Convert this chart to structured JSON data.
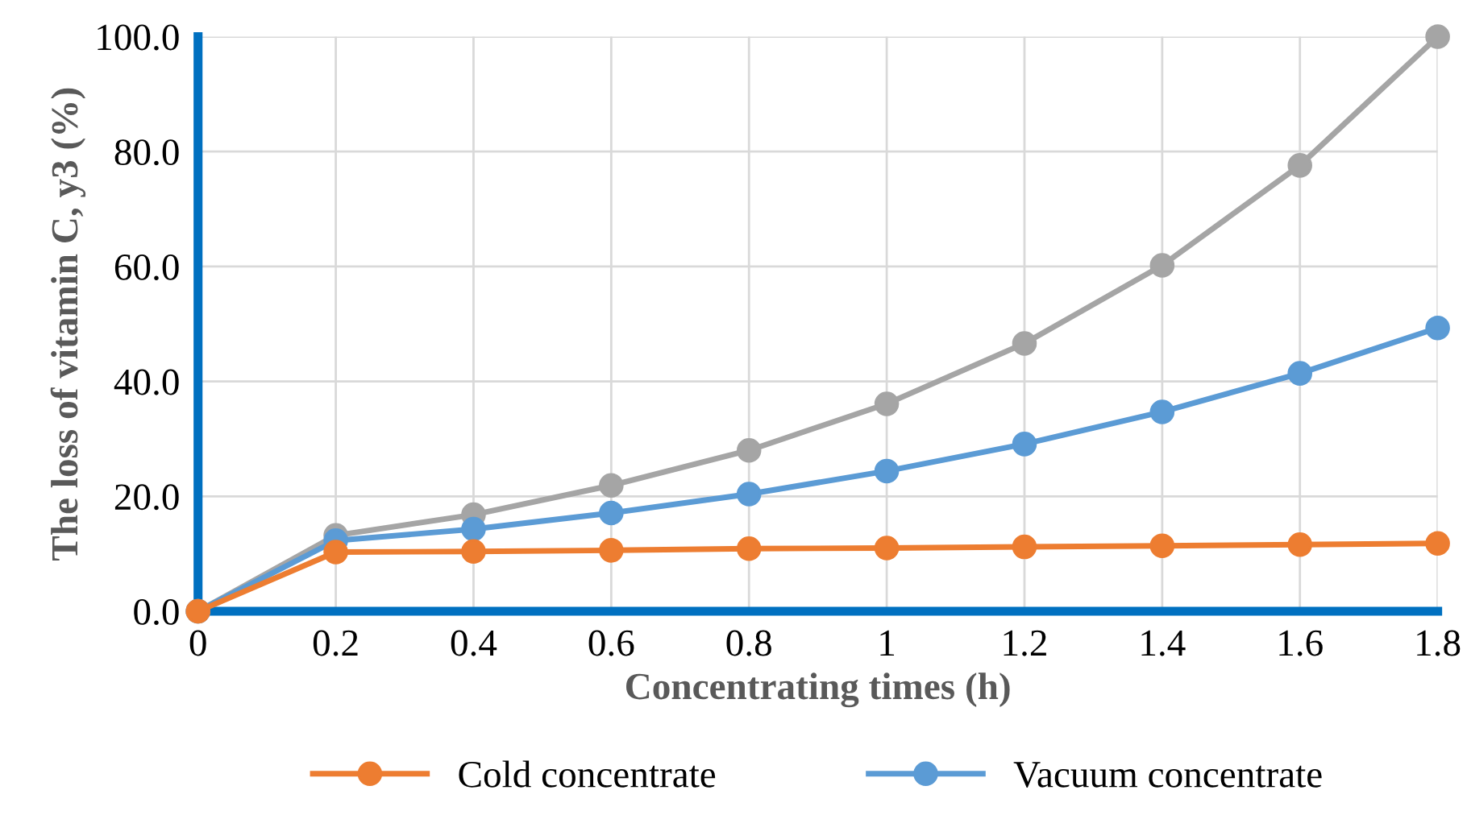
{
  "chart_data": {
    "type": "line",
    "xlabel": "Concentrating times (h)",
    "ylabel": "The loss of vitamin C, y3 (%)",
    "x": [
      0,
      0.2,
      0.4,
      0.6,
      0.8,
      1,
      1.2,
      1.4,
      1.6,
      1.8
    ],
    "series": [
      {
        "name": "Cold concentrate",
        "color": "#ed7d31",
        "values": [
          0,
          10.3,
          10.4,
          10.6,
          10.9,
          11.0,
          11.2,
          11.4,
          11.6,
          11.8
        ]
      },
      {
        "name": "Vacuum concentrate",
        "color": "#5b9bd5",
        "values": [
          0,
          12.3,
          14.3,
          17.1,
          20.4,
          24.4,
          29.1,
          34.7,
          41.4,
          49.3
        ]
      },
      {
        "color": "#a5a5a5",
        "values": [
          0,
          13.2,
          16.8,
          21.9,
          28.0,
          36.1,
          46.6,
          60.2,
          77.6,
          100.0
        ]
      }
    ],
    "xlim": [
      0,
      1.8
    ],
    "xticks": [
      0,
      0.2,
      0.4,
      0.6,
      0.8,
      1,
      1.2,
      1.4,
      1.6,
      1.8
    ],
    "ylim": [
      0,
      100
    ],
    "yticks": [
      {
        "value": 0,
        "label": "0.0"
      },
      {
        "value": 20,
        "label": "20.0"
      },
      {
        "value": 40,
        "label": "40.0"
      },
      {
        "value": 60,
        "label": "60.0"
      },
      {
        "value": 80,
        "label": "80.0"
      },
      {
        "value": 100,
        "label": "100.0"
      }
    ],
    "grid": true,
    "legend": "bottom",
    "marker": "circle",
    "line_style": "solid"
  }
}
